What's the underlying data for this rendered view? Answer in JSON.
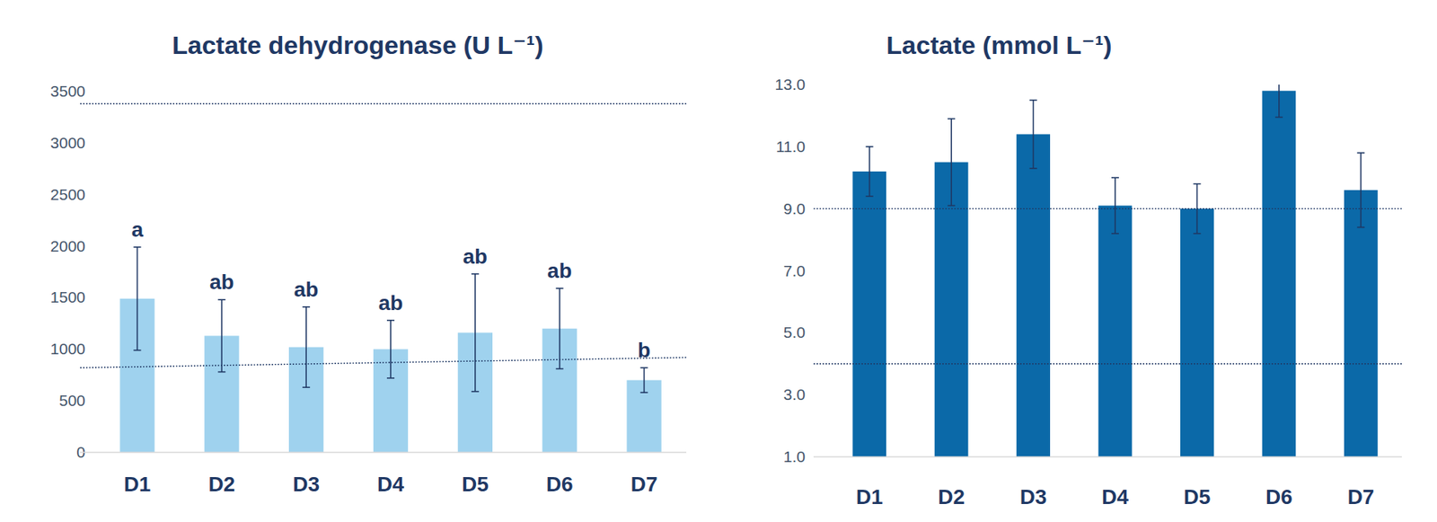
{
  "chart_data": [
    {
      "type": "bar",
      "title": "Lactate dehydrogenase (U L⁻¹)",
      "categories": [
        "D1",
        "D2",
        "D3",
        "D4",
        "D5",
        "D6",
        "D7"
      ],
      "values": [
        1490,
        1130,
        1020,
        1000,
        1160,
        1200,
        700
      ],
      "errors": [
        500,
        350,
        390,
        280,
        570,
        390,
        120
      ],
      "group_labels": [
        "a",
        "ab",
        "ab",
        "ab",
        "ab",
        "ab",
        "b"
      ],
      "color": "#9fd2ee",
      "ylim": [
        0,
        3500
      ],
      "yticks": [
        0,
        500,
        1000,
        1500,
        2000,
        2500,
        3000,
        3500
      ],
      "grid": false,
      "reference_lines": [
        {
          "start": 820,
          "end": 920
        },
        {
          "start": 3380,
          "end": 3380
        }
      ]
    },
    {
      "type": "bar",
      "title": "Lactate (mmol L⁻¹)",
      "categories": [
        "D1",
        "D2",
        "D3",
        "D4",
        "D5",
        "D6",
        "D7"
      ],
      "values": [
        10.2,
        10.5,
        11.4,
        9.1,
        9.0,
        12.8,
        9.6
      ],
      "errors": [
        0.8,
        1.4,
        1.1,
        0.9,
        0.8,
        0.85,
        1.2
      ],
      "color": "#0b69a8",
      "ylim": [
        1,
        13
      ],
      "yticks": [
        {
          "value": 1,
          "label": "1.0"
        },
        {
          "value": 3,
          "label": "3.0"
        },
        {
          "value": 5,
          "label": "5.0"
        },
        {
          "value": 7,
          "label": "7.0"
        },
        {
          "value": 9,
          "label": "9.0"
        },
        {
          "value": 11,
          "label": "11.0"
        },
        {
          "value": 13,
          "label": "13.0"
        }
      ],
      "grid": false,
      "reference_lines": [
        {
          "start": 9,
          "end": 9
        },
        {
          "start": 4,
          "end": 4
        }
      ]
    }
  ]
}
